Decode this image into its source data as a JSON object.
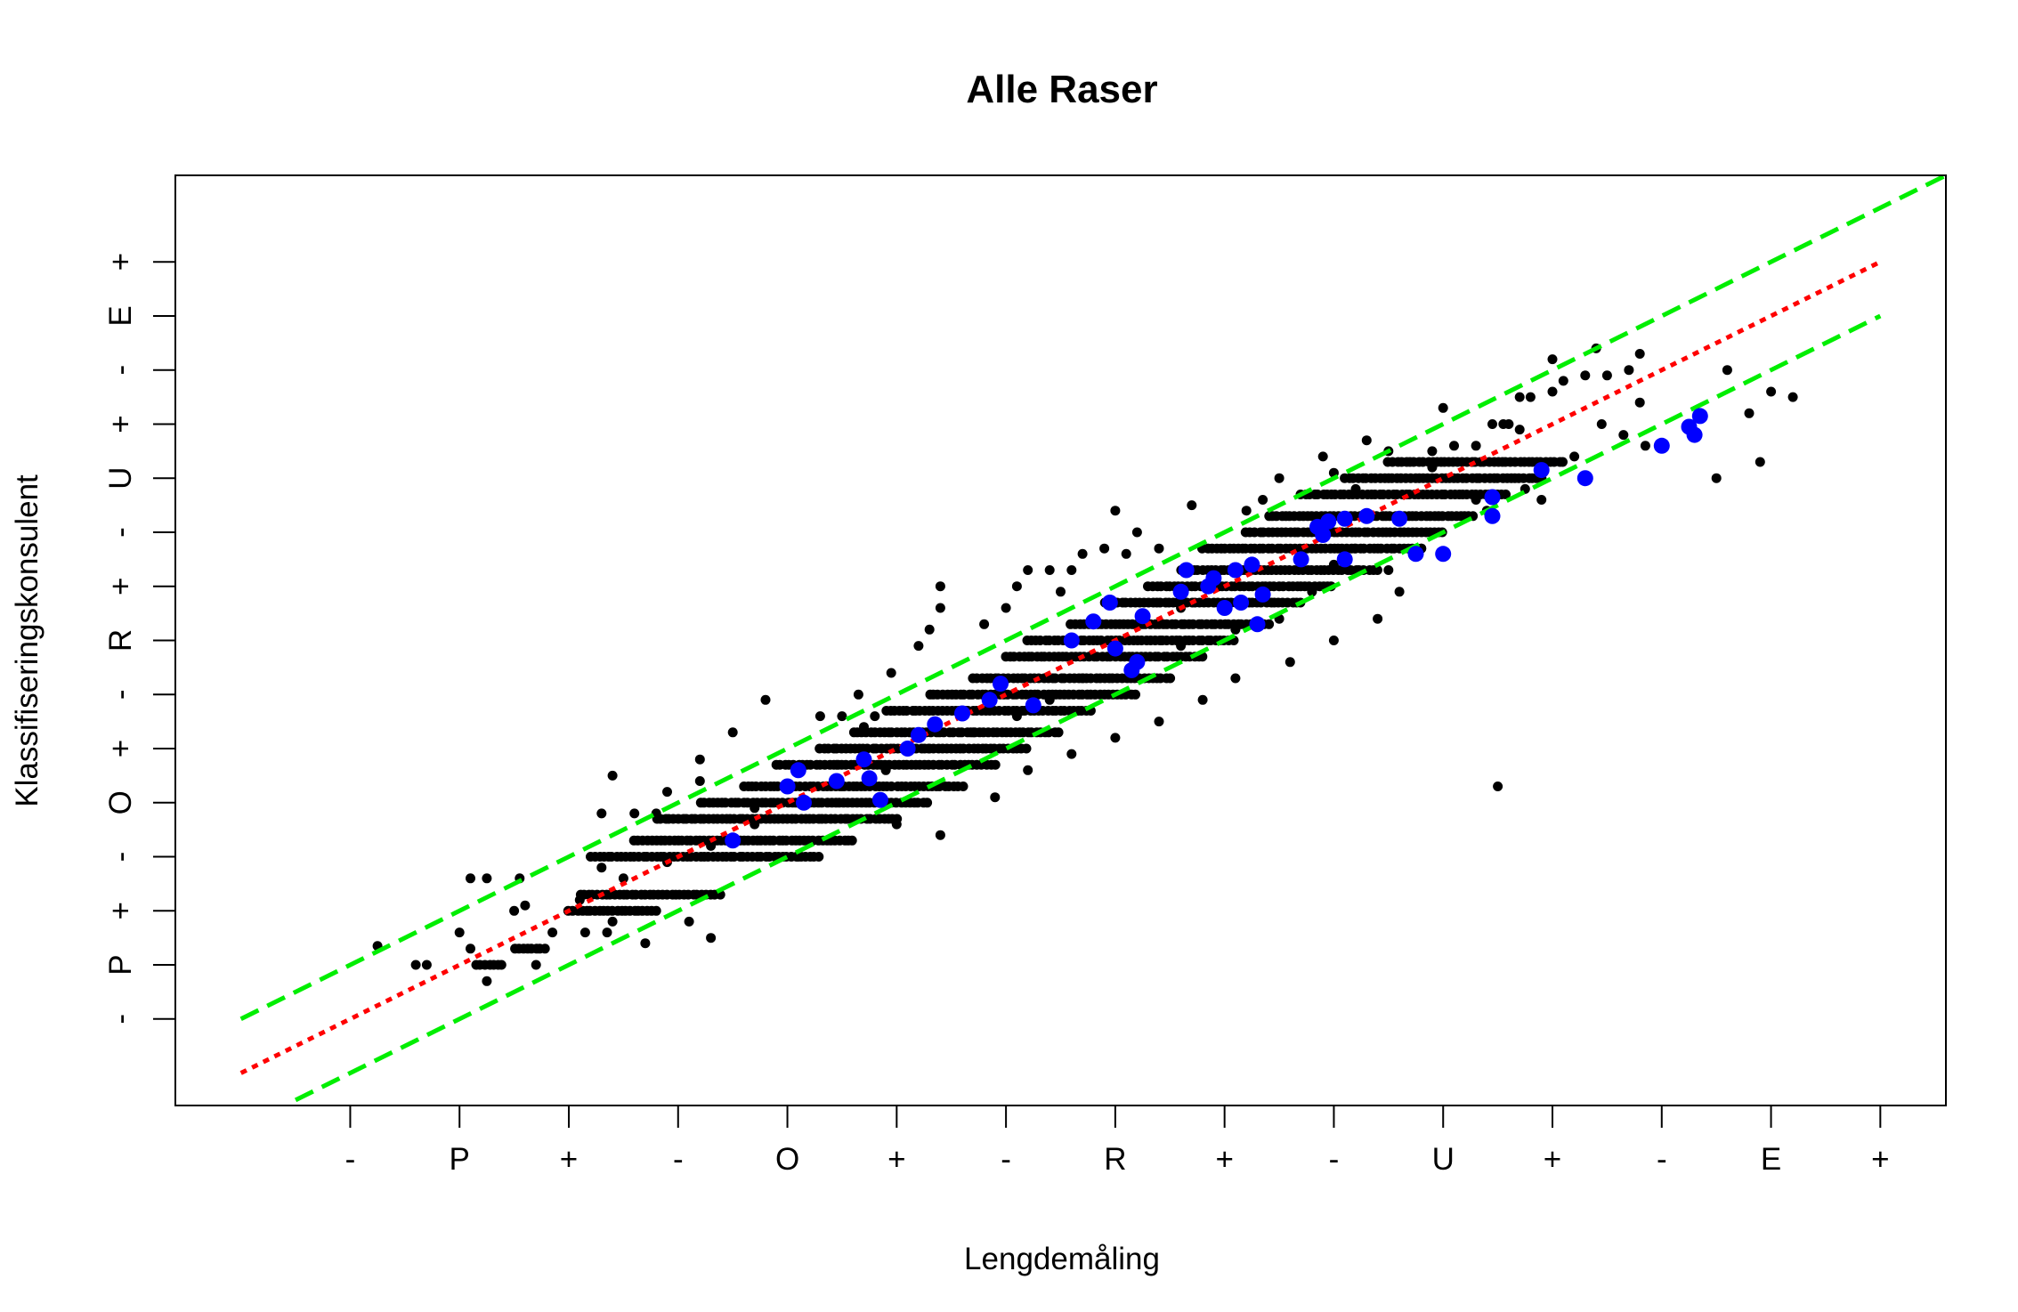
{
  "chart_data": {
    "type": "scatter",
    "title": "Alle Raser",
    "xlabel": "Lengdemåling",
    "ylabel": "Klassifiseringskonsulent",
    "xlim": [
      -0.6,
      15.6
    ],
    "ylim": [
      -1.6,
      15.6
    ],
    "x_ticks": [
      {
        "value": 1,
        "label": "-"
      },
      {
        "value": 2,
        "label": "P"
      },
      {
        "value": 3,
        "label": "+"
      },
      {
        "value": 4,
        "label": "-"
      },
      {
        "value": 5,
        "label": "O"
      },
      {
        "value": 6,
        "label": "+"
      },
      {
        "value": 7,
        "label": "-"
      },
      {
        "value": 8,
        "label": "R"
      },
      {
        "value": 9,
        "label": "+"
      },
      {
        "value": 10,
        "label": "-"
      },
      {
        "value": 11,
        "label": "U"
      },
      {
        "value": 12,
        "label": "+"
      },
      {
        "value": 13,
        "label": "-"
      },
      {
        "value": 14,
        "label": "E"
      },
      {
        "value": 15,
        "label": "+"
      }
    ],
    "y_ticks": [
      {
        "value": 0,
        "label": "-"
      },
      {
        "value": 1,
        "label": "P"
      },
      {
        "value": 2,
        "label": "+"
      },
      {
        "value": 3,
        "label": "-"
      },
      {
        "value": 4,
        "label": "O"
      },
      {
        "value": 5,
        "label": "+"
      },
      {
        "value": 6,
        "label": "-"
      },
      {
        "value": 7,
        "label": "R"
      },
      {
        "value": 8,
        "label": "+"
      },
      {
        "value": 9,
        "label": "-"
      },
      {
        "value": 10,
        "label": "U"
      },
      {
        "value": 11,
        "label": "+"
      },
      {
        "value": 12,
        "label": "-"
      },
      {
        "value": 13,
        "label": "E"
      },
      {
        "value": 14,
        "label": "+"
      }
    ],
    "grid": false,
    "colors": {
      "points": "#000000",
      "highlight": "#0000ff",
      "fit": "#ff0000",
      "band": "#00ee00"
    },
    "lines": [
      {
        "style": "dotted",
        "color": "#ff0000",
        "x": [
          0,
          15
        ],
        "y": [
          -1,
          14
        ]
      },
      {
        "style": "dashed",
        "color": "#00ee00",
        "x": [
          0,
          15.6
        ],
        "y": [
          0,
          15.6
        ]
      },
      {
        "style": "dashed",
        "color": "#00ee00",
        "x": [
          0.5,
          15
        ],
        "y": [
          -1.5,
          13
        ]
      }
    ],
    "clusters": [
      {
        "y": 1.0,
        "x_from": 2.15,
        "x_to": 2.4
      },
      {
        "y": 1.3,
        "x_from": 2.5,
        "x_to": 2.8
      },
      {
        "y": 2.0,
        "x_from": 3.0,
        "x_to": 3.8
      },
      {
        "y": 2.3,
        "x_from": 3.1,
        "x_to": 4.4
      },
      {
        "y": 3.0,
        "x_from": 3.2,
        "x_to": 5.3
      },
      {
        "y": 3.3,
        "x_from": 3.6,
        "x_to": 5.6
      },
      {
        "y": 3.7,
        "x_from": 3.8,
        "x_to": 6.0
      },
      {
        "y": 4.0,
        "x_from": 4.2,
        "x_to": 6.3
      },
      {
        "y": 4.3,
        "x_from": 4.6,
        "x_to": 6.6
      },
      {
        "y": 4.7,
        "x_from": 4.9,
        "x_to": 6.9
      },
      {
        "y": 5.0,
        "x_from": 5.3,
        "x_to": 7.2
      },
      {
        "y": 5.3,
        "x_from": 5.6,
        "x_to": 7.5
      },
      {
        "y": 5.7,
        "x_from": 5.9,
        "x_to": 7.8
      },
      {
        "y": 6.0,
        "x_from": 6.3,
        "x_to": 8.2
      },
      {
        "y": 6.3,
        "x_from": 6.7,
        "x_to": 8.5
      },
      {
        "y": 6.7,
        "x_from": 7.0,
        "x_to": 8.8
      },
      {
        "y": 7.0,
        "x_from": 7.2,
        "x_to": 9.1
      },
      {
        "y": 7.3,
        "x_from": 7.6,
        "x_to": 9.4
      },
      {
        "y": 7.7,
        "x_from": 7.9,
        "x_to": 9.7
      },
      {
        "y": 8.0,
        "x_from": 8.3,
        "x_to": 10.0
      },
      {
        "y": 8.3,
        "x_from": 8.6,
        "x_to": 10.4
      },
      {
        "y": 8.7,
        "x_from": 8.8,
        "x_to": 10.8
      },
      {
        "y": 9.0,
        "x_from": 9.2,
        "x_to": 11.0
      },
      {
        "y": 9.3,
        "x_from": 9.4,
        "x_to": 11.3
      },
      {
        "y": 9.7,
        "x_from": 9.7,
        "x_to": 11.6
      },
      {
        "y": 10.0,
        "x_from": 10.1,
        "x_to": 11.9
      },
      {
        "y": 10.3,
        "x_from": 10.5,
        "x_to": 12.1
      }
    ],
    "series": [
      {
        "color": "#000000",
        "points": [
          [
            2.25,
            0.7
          ],
          [
            2.1,
            1.3
          ],
          [
            1.25,
            1.35
          ],
          [
            1.6,
            1.0
          ],
          [
            1.7,
            1.0
          ],
          [
            2.0,
            1.6
          ],
          [
            2.7,
            1.0
          ],
          [
            2.85,
            1.6
          ],
          [
            3.15,
            1.6
          ],
          [
            3.35,
            1.6
          ],
          [
            3.4,
            1.8
          ],
          [
            2.5,
            2.0
          ],
          [
            2.6,
            2.1
          ],
          [
            2.1,
            2.6
          ],
          [
            2.25,
            2.6
          ],
          [
            2.55,
            2.6
          ],
          [
            3.7,
            1.4
          ],
          [
            4.3,
            1.5
          ],
          [
            4.1,
            1.8
          ],
          [
            3.3,
            3.8
          ],
          [
            3.6,
            3.8
          ],
          [
            3.8,
            3.8
          ],
          [
            3.4,
            4.5
          ],
          [
            4.2,
            4.4
          ],
          [
            4.5,
            5.3
          ],
          [
            4.8,
            5.9
          ],
          [
            4.2,
            4.8
          ],
          [
            3.9,
            4.2
          ],
          [
            5.3,
            5.6
          ],
          [
            5.5,
            5.6
          ],
          [
            5.7,
            5.4
          ],
          [
            5.8,
            5.6
          ],
          [
            5.65,
            6.0
          ],
          [
            5.95,
            6.4
          ],
          [
            6.2,
            6.9
          ],
          [
            6.4,
            7.6
          ],
          [
            6.4,
            8.0
          ],
          [
            6.3,
            7.2
          ],
          [
            7.1,
            8.0
          ],
          [
            7.2,
            8.3
          ],
          [
            7.4,
            8.3
          ],
          [
            7.6,
            8.3
          ],
          [
            7.9,
            8.7
          ],
          [
            8.2,
            9.0
          ],
          [
            8.4,
            8.7
          ],
          [
            8.0,
            9.4
          ],
          [
            8.6,
            7.6
          ],
          [
            8.9,
            8.2
          ],
          [
            9.2,
            9.4
          ],
          [
            9.35,
            9.6
          ],
          [
            10.0,
            10.1
          ],
          [
            10.2,
            9.8
          ],
          [
            10.5,
            10.5
          ],
          [
            10.9,
            10.5
          ],
          [
            11.1,
            10.6
          ],
          [
            11.3,
            10.6
          ],
          [
            11.45,
            11.0
          ],
          [
            11.55,
            11.0
          ],
          [
            11.7,
            11.5
          ],
          [
            11.8,
            11.5
          ],
          [
            12.0,
            11.6
          ],
          [
            12.1,
            11.8
          ],
          [
            12.3,
            11.9
          ],
          [
            12.5,
            11.9
          ],
          [
            12.7,
            12.0
          ],
          [
            12.8,
            11.4
          ],
          [
            13.6,
            12.0
          ],
          [
            13.8,
            11.2
          ],
          [
            14.0,
            11.6
          ],
          [
            14.2,
            11.5
          ],
          [
            12.2,
            10.4
          ],
          [
            12.45,
            11.0
          ],
          [
            12.65,
            10.8
          ],
          [
            12.85,
            10.6
          ],
          [
            11.9,
            9.6
          ],
          [
            11.75,
            9.8
          ],
          [
            11.4,
            9.4
          ],
          [
            10.8,
            8.7
          ],
          [
            10.5,
            8.3
          ],
          [
            10.2,
            8.7
          ],
          [
            9.8,
            7.9
          ],
          [
            9.5,
            7.4
          ],
          [
            9.1,
            7.2
          ],
          [
            8.6,
            6.9
          ],
          [
            8.2,
            6.6
          ],
          [
            7.7,
            6.3
          ],
          [
            7.4,
            5.9
          ],
          [
            7.1,
            5.6
          ],
          [
            6.7,
            5.3
          ],
          [
            6.3,
            5.0
          ],
          [
            5.9,
            4.6
          ],
          [
            5.5,
            4.3
          ],
          [
            5.1,
            4.0
          ],
          [
            4.7,
            3.6
          ],
          [
            4.3,
            3.2
          ],
          [
            3.9,
            2.9
          ],
          [
            3.5,
            2.6
          ],
          [
            3.1,
            2.2
          ],
          [
            6.8,
            7.3
          ],
          [
            7.0,
            7.6
          ],
          [
            7.5,
            7.9
          ],
          [
            7.7,
            8.6
          ],
          [
            8.7,
            9.5
          ],
          [
            9.5,
            10.0
          ],
          [
            10.3,
            10.7
          ],
          [
            9.9,
            10.4
          ],
          [
            11.0,
            11.3
          ],
          [
            12.0,
            12.2
          ],
          [
            12.4,
            12.4
          ],
          [
            11.7,
            10.9
          ],
          [
            10.9,
            10.2
          ],
          [
            8.1,
            8.6
          ],
          [
            9.0,
            7.6
          ],
          [
            10.0,
            8.4
          ],
          [
            11.3,
            9.6
          ],
          [
            11.6,
            11.0
          ],
          [
            12.8,
            12.3
          ],
          [
            13.5,
            10.0
          ],
          [
            13.9,
            10.3
          ],
          [
            11.5,
            4.3
          ],
          [
            10.6,
            7.9
          ],
          [
            5.45,
            4.7
          ],
          [
            4.7,
            3.9
          ],
          [
            3.3,
            2.8
          ],
          [
            5.1,
            3.0
          ],
          [
            6.0,
            3.6
          ],
          [
            6.4,
            3.4
          ],
          [
            6.9,
            4.1
          ],
          [
            7.2,
            4.6
          ],
          [
            7.6,
            4.9
          ],
          [
            8.0,
            5.2
          ],
          [
            8.4,
            5.5
          ],
          [
            8.8,
            5.9
          ],
          [
            9.1,
            6.3
          ],
          [
            9.6,
            6.6
          ],
          [
            10.0,
            7.0
          ],
          [
            10.4,
            7.4
          ]
        ]
      },
      {
        "color": "#0000ff",
        "points": [
          [
            4.5,
            3.3
          ],
          [
            5.0,
            4.3
          ],
          [
            5.1,
            4.6
          ],
          [
            5.15,
            4.0
          ],
          [
            5.45,
            4.4
          ],
          [
            5.7,
            4.8
          ],
          [
            5.75,
            4.45
          ],
          [
            5.85,
            4.05
          ],
          [
            6.1,
            5.0
          ],
          [
            6.2,
            5.25
          ],
          [
            6.35,
            5.45
          ],
          [
            6.6,
            5.65
          ],
          [
            6.85,
            5.9
          ],
          [
            6.95,
            6.2
          ],
          [
            7.25,
            5.8
          ],
          [
            7.6,
            7.0
          ],
          [
            7.8,
            7.35
          ],
          [
            7.95,
            7.7
          ],
          [
            8.0,
            6.85
          ],
          [
            8.15,
            6.45
          ],
          [
            8.2,
            6.6
          ],
          [
            8.25,
            7.45
          ],
          [
            8.6,
            7.9
          ],
          [
            8.65,
            8.3
          ],
          [
            8.85,
            8.0
          ],
          [
            8.9,
            8.15
          ],
          [
            9.0,
            7.6
          ],
          [
            9.1,
            8.3
          ],
          [
            9.15,
            7.7
          ],
          [
            9.25,
            8.4
          ],
          [
            9.3,
            7.3
          ],
          [
            9.35,
            7.85
          ],
          [
            9.7,
            8.5
          ],
          [
            9.85,
            9.1
          ],
          [
            9.95,
            9.2
          ],
          [
            10.1,
            8.5
          ],
          [
            10.1,
            9.25
          ],
          [
            10.3,
            9.3
          ],
          [
            10.75,
            8.6
          ],
          [
            11.0,
            8.6
          ],
          [
            11.45,
            9.3
          ],
          [
            11.45,
            9.65
          ],
          [
            11.9,
            10.15
          ],
          [
            12.3,
            10.0
          ],
          [
            13.0,
            10.6
          ],
          [
            13.25,
            10.95
          ],
          [
            13.3,
            10.8
          ],
          [
            13.35,
            11.15
          ],
          [
            10.6,
            9.25
          ],
          [
            9.9,
            8.95
          ]
        ]
      }
    ]
  }
}
